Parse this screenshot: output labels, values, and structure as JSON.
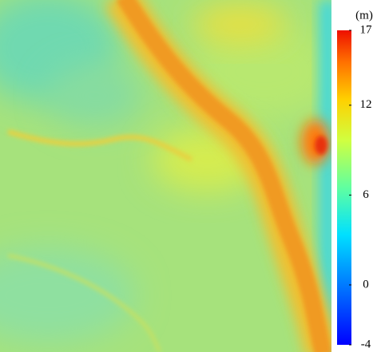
{
  "colorbar": {
    "label": "(m)",
    "lim": [
      -4,
      17
    ],
    "ticks": [
      17,
      12,
      6,
      0,
      -4
    ]
  }
}
